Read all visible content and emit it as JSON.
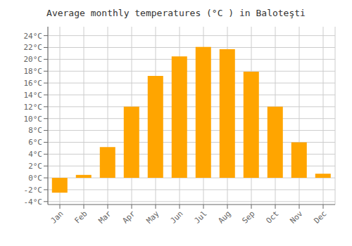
{
  "chart_data": {
    "type": "bar",
    "title": "Average monthly temperatures (°C ) in Baloteşti",
    "categories": [
      "Jan",
      "Feb",
      "Mar",
      "Apr",
      "May",
      "Jun",
      "Jul",
      "Aug",
      "Sep",
      "Oct",
      "Nov",
      "Dec"
    ],
    "values": [
      -2.5,
      0.5,
      5.2,
      12.0,
      17.2,
      20.5,
      22.1,
      21.7,
      17.9,
      12.0,
      6.0,
      0.7
    ],
    "color": "#FFA500",
    "ylim": [
      -4.5,
      25.5
    ],
    "yticks": [
      {
        "value": -4,
        "label": "-4°C"
      },
      {
        "value": -2,
        "label": "-2°C"
      },
      {
        "value": 0,
        "label": "0°C"
      },
      {
        "value": 2,
        "label": "2°C"
      },
      {
        "value": 4,
        "label": "4°C"
      },
      {
        "value": 6,
        "label": "6°C"
      },
      {
        "value": 8,
        "label": "8°C"
      },
      {
        "value": 10,
        "label": "10°C"
      },
      {
        "value": 12,
        "label": "12°C"
      },
      {
        "value": 14,
        "label": "14°C"
      },
      {
        "value": 16,
        "label": "16°C"
      },
      {
        "value": 18,
        "label": "18°C"
      },
      {
        "value": 20,
        "label": "20°C"
      },
      {
        "value": 22,
        "label": "22°C"
      },
      {
        "value": 24,
        "label": "24°C"
      }
    ],
    "grid": true
  }
}
